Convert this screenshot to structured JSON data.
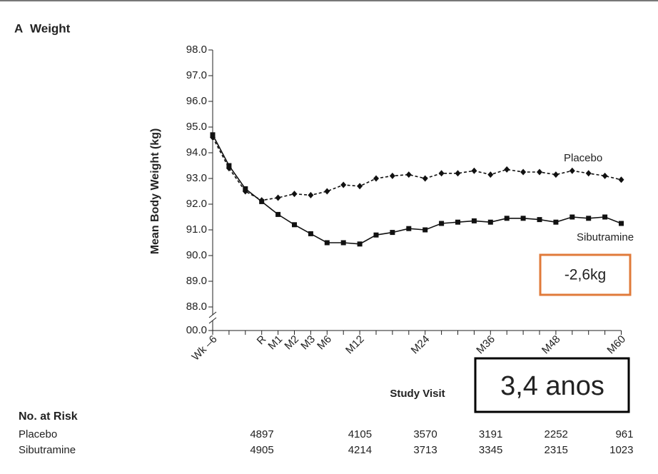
{
  "chart_data": {
    "type": "line",
    "panel_label": "A",
    "title": "Weight",
    "xlabel": "Study Visit",
    "ylabel": "Mean Body Weight (kg)",
    "categories": [
      "Wk –6",
      null,
      null,
      "R",
      "M1",
      "M2",
      "M3",
      "M6",
      null,
      "M12",
      null,
      null,
      null,
      "M24",
      null,
      null,
      null,
      "M36",
      null,
      null,
      null,
      "M48",
      null,
      null,
      null,
      "M60"
    ],
    "series": [
      {
        "name": "Placebo",
        "color": "#111111",
        "marker": "diamond",
        "dash": true,
        "values": [
          94.6,
          93.4,
          92.5,
          92.15,
          92.25,
          92.4,
          92.35,
          92.5,
          92.75,
          92.7,
          93.0,
          93.1,
          93.15,
          93.0,
          93.2,
          93.2,
          93.3,
          93.15,
          93.35,
          93.25,
          93.25,
          93.15,
          93.3,
          93.2,
          93.1,
          92.95
        ]
      },
      {
        "name": "Sibutramine",
        "color": "#111111",
        "marker": "square",
        "dash": false,
        "values": [
          94.7,
          93.5,
          92.6,
          92.1,
          91.6,
          91.2,
          90.85,
          90.5,
          90.5,
          90.45,
          90.8,
          90.9,
          91.05,
          91.0,
          91.25,
          91.3,
          91.35,
          91.3,
          91.45,
          91.45,
          91.4,
          91.3,
          91.5,
          91.45,
          91.5,
          91.25
        ]
      }
    ],
    "ylim": [
      88,
      98
    ],
    "yticks": [
      {
        "value": 88,
        "label": "88.0"
      },
      {
        "value": 89,
        "label": "89.0"
      },
      {
        "value": 90,
        "label": "90.0"
      },
      {
        "value": 91,
        "label": "91.0"
      },
      {
        "value": 92,
        "label": "92.0"
      },
      {
        "value": 93,
        "label": "93.0"
      },
      {
        "value": 94,
        "label": "94.0"
      },
      {
        "value": 95,
        "label": "95.0"
      },
      {
        "value": 96,
        "label": "96.0"
      },
      {
        "value": 97,
        "label": "97.0"
      },
      {
        "value": 98,
        "label": "98.0"
      }
    ],
    "ybreak_label": "00.0",
    "grid": false,
    "annotations": [
      "-2,6kg",
      "3,4 anos"
    ],
    "risk_table": {
      "title": "No. at Risk",
      "rows": [
        {
          "name": "Placebo",
          "values": [
            4897,
            4105,
            3570,
            3191,
            2252,
            961
          ]
        },
        {
          "name": "Sibutramine",
          "values": [
            4905,
            4214,
            3713,
            3345,
            2315,
            1023
          ]
        }
      ]
    }
  }
}
